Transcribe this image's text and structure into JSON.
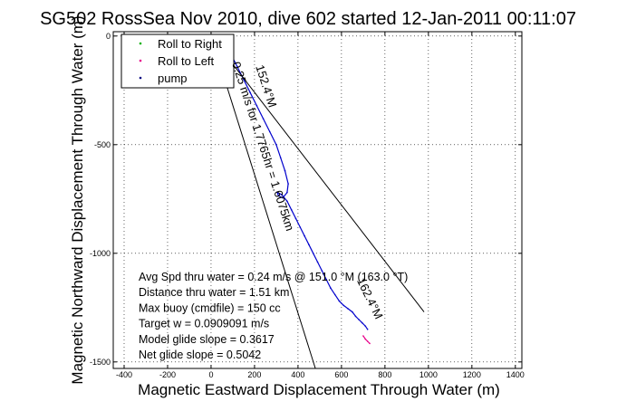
{
  "figure": {
    "background": "#ffffff"
  },
  "chart_data": {
    "type": "line",
    "title": "SG502 RossSea Nov 2010, dive 602 started 12-Jan-2011 00:11:07",
    "xlabel": "Magnetic Eastward Displacement Through Water (m)",
    "ylabel": "Magnetic Northward Displacement Through Water (m)",
    "xlim": [
      -450,
      1430
    ],
    "ylim": [
      -1530,
      20
    ],
    "xticks": [
      -400,
      -200,
      0,
      200,
      400,
      600,
      800,
      1000,
      1200,
      1400
    ],
    "yticks": [
      0,
      -500,
      -1000,
      -1500
    ],
    "grid": true,
    "legend": {
      "placement": "top-left",
      "entries": [
        {
          "label": "Roll to Right",
          "color": "#00b000",
          "marker": "dot"
        },
        {
          "label": "Roll to Left",
          "color": "#e8008a",
          "marker": "dot"
        },
        {
          "label": "pump",
          "color": "#000080",
          "marker": "dot"
        }
      ]
    },
    "series": [
      {
        "color": "#0000cc",
        "x": [
          0,
          10,
          25,
          40,
          55,
          75,
          95,
          120,
          150,
          180,
          210,
          240,
          270,
          300,
          320,
          340,
          355,
          350,
          330,
          310,
          305,
          325,
          350,
          370,
          390,
          410,
          430,
          450,
          470,
          490,
          510,
          530,
          550,
          570,
          590,
          610,
          630,
          650,
          665,
          680,
          695,
          710,
          720
        ],
        "y": [
          0,
          -8,
          -15,
          -25,
          -35,
          -55,
          -90,
          -140,
          -200,
          -260,
          -320,
          -380,
          -440,
          -500,
          -560,
          -620,
          -680,
          -720,
          -745,
          -735,
          -720,
          -730,
          -760,
          -800,
          -840,
          -880,
          -920,
          -960,
          -1000,
          -1040,
          -1080,
          -1120,
          -1160,
          -1190,
          -1220,
          -1240,
          -1255,
          -1270,
          -1290,
          -1305,
          -1320,
          -1335,
          -1350
        ]
      },
      {
        "color": "#e8008a",
        "x": [
          700,
          710,
          720,
          730
        ],
        "y": [
          -1380,
          -1395,
          -1405,
          -1415
        ]
      }
    ],
    "reference_lines": [
      {
        "label": "152.4°M",
        "from": [
          0,
          0
        ],
        "to": [
          980,
          -1270
        ]
      },
      {
        "label": "162.4°M",
        "from": [
          0,
          0
        ],
        "to": [
          480,
          -1530
        ]
      }
    ],
    "annotations": {
      "track_label": "0.25 m/s for 1.7765hr = 1.6075km",
      "stats": [
        "Avg Spd thru water =  0.24 m/s @ 151.0   °M (163.0 °T)",
        "Distance thru water =  1.51 km",
        "Max buoy (cmdfile) = 150 cc",
        "Target w = 0.0909091 m/s",
        "Model glide slope = 0.3617",
        "Net glide slope = 0.5042"
      ]
    }
  }
}
